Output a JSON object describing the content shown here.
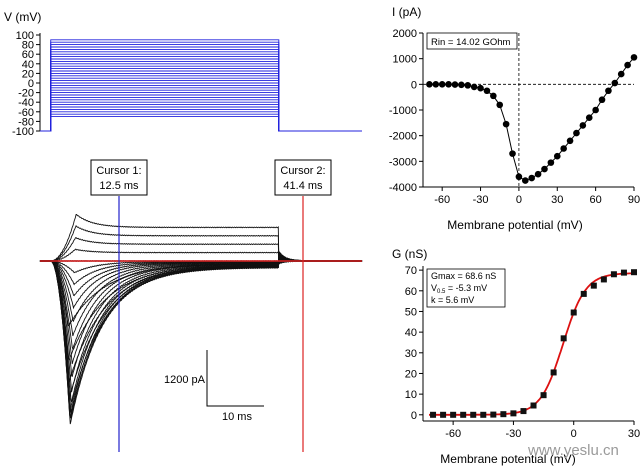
{
  "chart_data": [
    {
      "id": "voltage_protocol",
      "type": "line",
      "ylabel": "V (mV)",
      "yticks": [
        100,
        80,
        60,
        40,
        20,
        0,
        -20,
        -40,
        -60,
        -80,
        -100
      ],
      "ylim": [
        -100,
        100
      ],
      "holding_mV": -100,
      "steps_mV": [
        -70,
        -65,
        -60,
        -55,
        -50,
        -45,
        -40,
        -35,
        -30,
        -25,
        -20,
        -15,
        -10,
        -5,
        0,
        5,
        10,
        15,
        20,
        25,
        30,
        35,
        40,
        45,
        50,
        55,
        60,
        65,
        70,
        75,
        80,
        85,
        90
      ],
      "step_on_ms": 2.0,
      "step_off_ms": 44.5,
      "sweep_ms": 60,
      "trace_color": "#2222dd"
    },
    {
      "id": "current_traces",
      "type": "line",
      "cursors": [
        {
          "label_1": "Cursor 1:",
          "label_2": "12.5 ms",
          "time_ms": 12.5,
          "color": "#2222cc"
        },
        {
          "label_1": "Cursor 2:",
          "label_2": "41.4 ms",
          "time_ms": 41.4,
          "color": "#dd2222"
        }
      ],
      "scalebar": {
        "current_label": "1200 pA",
        "time_label": "10 ms",
        "current_pA": 1200,
        "time_ms": 10
      },
      "baseline_color": "#dd2222",
      "peak_currents_pA": [
        0,
        -1400,
        -2150,
        -2600,
        -2950,
        -3250,
        -3400,
        -3500,
        -3400,
        -3250,
        -3050,
        -2800,
        -2500,
        -2200,
        -1900,
        -1600,
        -1300,
        -1000,
        -750,
        -500,
        -250,
        0,
        250,
        500,
        750,
        1000
      ]
    },
    {
      "id": "iv_curve",
      "type": "scatter",
      "title": "I (pA)",
      "xlabel": "Membrane potential (mV)",
      "ylabel": "I (pA)",
      "annotation": "Rin = 14.02 GOhm",
      "xlim": [
        -75,
        90
      ],
      "ylim": [
        -4000,
        2000
      ],
      "xticks": [
        -60,
        -30,
        0,
        30,
        60,
        90
      ],
      "yticks": [
        2000,
        1000,
        0,
        -1000,
        -2000,
        -3000,
        -4000
      ],
      "x": [
        -70,
        -65,
        -60,
        -55,
        -50,
        -45,
        -40,
        -35,
        -30,
        -25,
        -20,
        -15,
        -10,
        -5,
        0,
        5,
        10,
        15,
        20,
        25,
        30,
        35,
        40,
        45,
        50,
        55,
        60,
        65,
        70,
        75,
        80,
        85,
        90
      ],
      "y": [
        0,
        0,
        0,
        0,
        -10,
        -20,
        -40,
        -100,
        -150,
        -250,
        -450,
        -800,
        -1550,
        -2700,
        -3600,
        -3750,
        -3650,
        -3500,
        -3300,
        -3050,
        -2800,
        -2500,
        -2200,
        -1900,
        -1600,
        -1300,
        -1000,
        -600,
        -250,
        50,
        400,
        750,
        1050
      ]
    },
    {
      "id": "conductance",
      "type": "scatter",
      "title": "G (nS)",
      "xlabel": "Membrane potential (mV)",
      "ylabel": "G (nS)",
      "annotation_lines": [
        "Gmax = 68.6 nS",
        "V",
        "0.5",
        " = -5.3 mV",
        "k = 5.6 mV"
      ],
      "fit": {
        "Gmax": 68.6,
        "V05": -5.3,
        "k": 5.6,
        "color": "#dd1111"
      },
      "xlim": [
        -75,
        30
      ],
      "ylim": [
        -3,
        72
      ],
      "xticks": [
        -60,
        -30,
        0,
        30
      ],
      "yticks": [
        70,
        60,
        50,
        40,
        30,
        20,
        10,
        0
      ],
      "x": [
        -70,
        -65,
        -60,
        -55,
        -50,
        -45,
        -40,
        -35,
        -30,
        -25,
        -20,
        -15,
        -10,
        -5,
        0,
        5,
        10,
        15,
        20,
        25,
        30
      ],
      "y": [
        0,
        0,
        0,
        0,
        0,
        0,
        0.1,
        0.3,
        0.7,
        1.8,
        4.5,
        9.5,
        20.5,
        37,
        49.5,
        58.5,
        62.5,
        65.5,
        68,
        68.8,
        69
      ]
    }
  ],
  "watermark": "www.yeslu.cn"
}
